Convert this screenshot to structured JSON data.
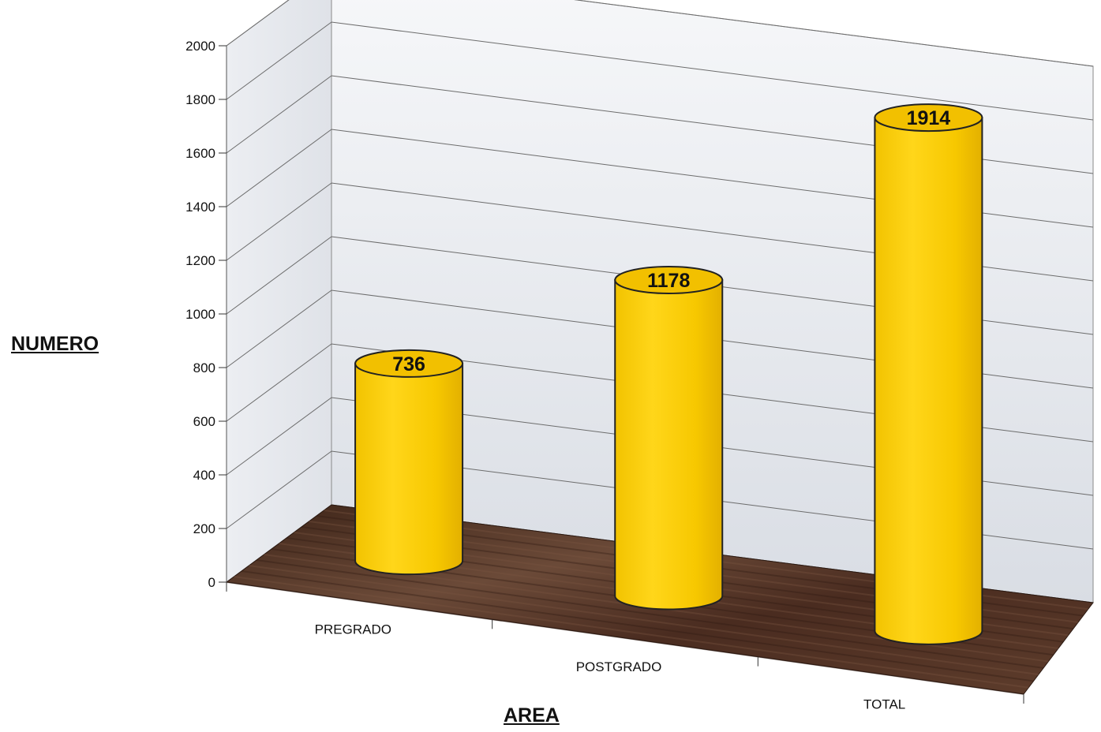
{
  "chart_data": {
    "type": "bar",
    "categories": [
      "PREGRADO",
      "POSTGRADO",
      "TOTAL"
    ],
    "values": [
      736,
      1178,
      1914
    ],
    "title": "",
    "xlabel": "AREA",
    "ylabel": "NUMERO",
    "ylim": [
      0,
      2000
    ],
    "yticks": [
      0,
      200,
      400,
      600,
      800,
      1000,
      1200,
      1400,
      1600,
      1800,
      2000
    ],
    "grid": true,
    "legend": "none",
    "bar_shape": "cylinder-3d",
    "colors": {
      "bar": "#f5c400",
      "bar_top": "#f2c000",
      "floor": "#4a2e22",
      "wall": "#eef0f3"
    }
  }
}
